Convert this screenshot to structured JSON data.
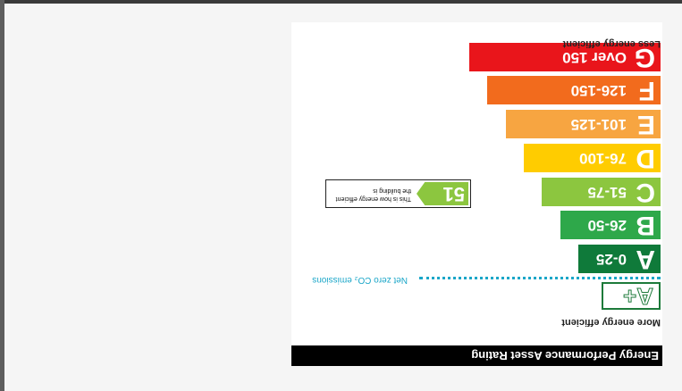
{
  "certificate": {
    "title": "Energy Performance Asset Rating",
    "more_efficient": "More energy efficient",
    "less_efficient": "Less energy efficient",
    "aplus_label": "A+",
    "net_zero": "Net zero CO₂ emissions",
    "rating": {
      "value": "51",
      "text": "This is how energy efficient the building is",
      "band": "C",
      "color": "#8cc63f"
    },
    "bands": [
      {
        "letter": "A",
        "range": "0-25",
        "color": "#0f7a3a"
      },
      {
        "letter": "B",
        "range": "26-50",
        "color": "#2ea84a"
      },
      {
        "letter": "C",
        "range": "51-75",
        "color": "#8cc63f"
      },
      {
        "letter": "D",
        "range": "76-100",
        "color": "#ffcc00"
      },
      {
        "letter": "E",
        "range": "101-125",
        "color": "#f7a541"
      },
      {
        "letter": "F",
        "range": "126-150",
        "color": "#f26b1d"
      },
      {
        "letter": "G",
        "range": "Over 150",
        "color": "#e9151b"
      }
    ]
  }
}
